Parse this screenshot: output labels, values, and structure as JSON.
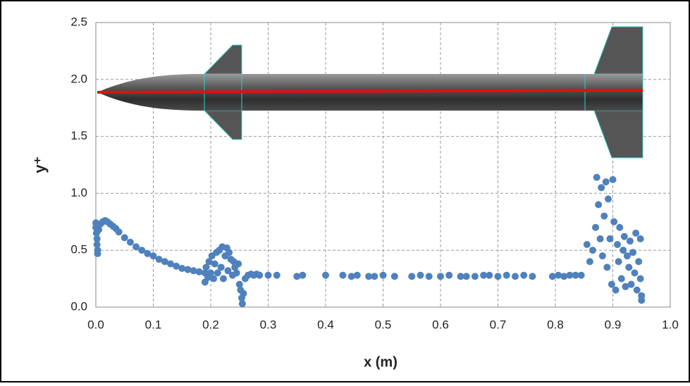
{
  "chart_data": {
    "type": "scatter",
    "x_label": "x (m)",
    "y_label": "y⁺",
    "color": "#4f81bd",
    "xlim": [
      0,
      1
    ],
    "ylim": [
      0,
      2.5
    ],
    "xticks": [
      {
        "value": 0,
        "label": "0.0"
      },
      0.1,
      0.2,
      0.3,
      0.4,
      0.5,
      0.6,
      0.7,
      0.8,
      0.9,
      {
        "value": 1,
        "label": "1.0"
      }
    ],
    "yticks": [
      {
        "value": 0,
        "label": "0.0"
      },
      0.5,
      {
        "value": 1,
        "label": "1.0"
      },
      1.5,
      {
        "value": 2,
        "label": "2.0"
      },
      2.5
    ],
    "grid": true,
    "x": [
      0.0,
      0.0,
      0.001,
      0.002,
      0.002,
      0.003,
      0.003,
      0.004,
      0.005,
      0.008,
      0.012,
      0.016,
      0.02,
      0.025,
      0.03,
      0.035,
      0.04,
      0.05,
      0.06,
      0.07,
      0.08,
      0.09,
      0.1,
      0.11,
      0.12,
      0.13,
      0.14,
      0.15,
      0.16,
      0.17,
      0.18,
      0.19,
      0.19,
      0.192,
      0.195,
      0.197,
      0.2,
      0.202,
      0.205,
      0.207,
      0.21,
      0.212,
      0.215,
      0.218,
      0.22,
      0.222,
      0.225,
      0.228,
      0.23,
      0.232,
      0.235,
      0.238,
      0.24,
      0.242,
      0.245,
      0.248,
      0.25,
      0.252,
      0.254,
      0.255,
      0.257,
      0.26,
      0.265,
      0.27,
      0.275,
      0.28,
      0.285,
      0.3,
      0.315,
      0.35,
      0.36,
      0.4,
      0.43,
      0.445,
      0.455,
      0.475,
      0.485,
      0.5,
      0.52,
      0.55,
      0.565,
      0.58,
      0.6,
      0.615,
      0.635,
      0.645,
      0.66,
      0.675,
      0.685,
      0.7,
      0.715,
      0.73,
      0.745,
      0.76,
      0.795,
      0.805,
      0.815,
      0.825,
      0.835,
      0.845,
      0.855,
      0.86,
      0.865,
      0.87,
      0.872,
      0.875,
      0.878,
      0.88,
      0.882,
      0.885,
      0.888,
      0.89,
      0.892,
      0.895,
      0.898,
      0.9,
      0.902,
      0.905,
      0.908,
      0.91,
      0.912,
      0.915,
      0.918,
      0.92,
      0.922,
      0.925,
      0.928,
      0.93,
      0.932,
      0.935,
      0.938,
      0.94,
      0.942,
      0.945,
      0.948,
      0.95,
      0.95,
      0.948
    ],
    "values": [
      0.74,
      0.7,
      0.65,
      0.6,
      0.55,
      0.5,
      0.47,
      0.72,
      0.68,
      0.73,
      0.75,
      0.76,
      0.75,
      0.73,
      0.71,
      0.69,
      0.66,
      0.61,
      0.57,
      0.53,
      0.5,
      0.47,
      0.45,
      0.42,
      0.4,
      0.38,
      0.36,
      0.34,
      0.33,
      0.32,
      0.31,
      0.3,
      0.22,
      0.35,
      0.26,
      0.4,
      0.3,
      0.45,
      0.25,
      0.38,
      0.48,
      0.3,
      0.5,
      0.35,
      0.53,
      0.25,
      0.45,
      0.52,
      0.32,
      0.48,
      0.42,
      0.28,
      0.4,
      0.35,
      0.3,
      0.38,
      0.2,
      0.15,
      0.08,
      0.03,
      0.12,
      0.25,
      0.28,
      0.29,
      0.28,
      0.29,
      0.28,
      0.28,
      0.28,
      0.27,
      0.28,
      0.28,
      0.28,
      0.27,
      0.28,
      0.27,
      0.27,
      0.28,
      0.27,
      0.27,
      0.28,
      0.27,
      0.27,
      0.28,
      0.27,
      0.27,
      0.27,
      0.28,
      0.28,
      0.27,
      0.28,
      0.27,
      0.28,
      0.27,
      0.27,
      0.28,
      0.27,
      0.28,
      0.28,
      0.28,
      0.55,
      0.4,
      0.5,
      0.7,
      1.14,
      0.9,
      0.6,
      1.05,
      0.45,
      0.8,
      1.1,
      0.35,
      0.95,
      0.6,
      0.2,
      1.12,
      0.75,
      0.15,
      0.55,
      0.4,
      0.7,
      0.25,
      0.5,
      0.62,
      0.18,
      0.45,
      0.35,
      0.58,
      0.2,
      0.48,
      0.3,
      0.65,
      0.15,
      0.4,
      0.25,
      0.1,
      0.06,
      0.6
    ]
  }
}
